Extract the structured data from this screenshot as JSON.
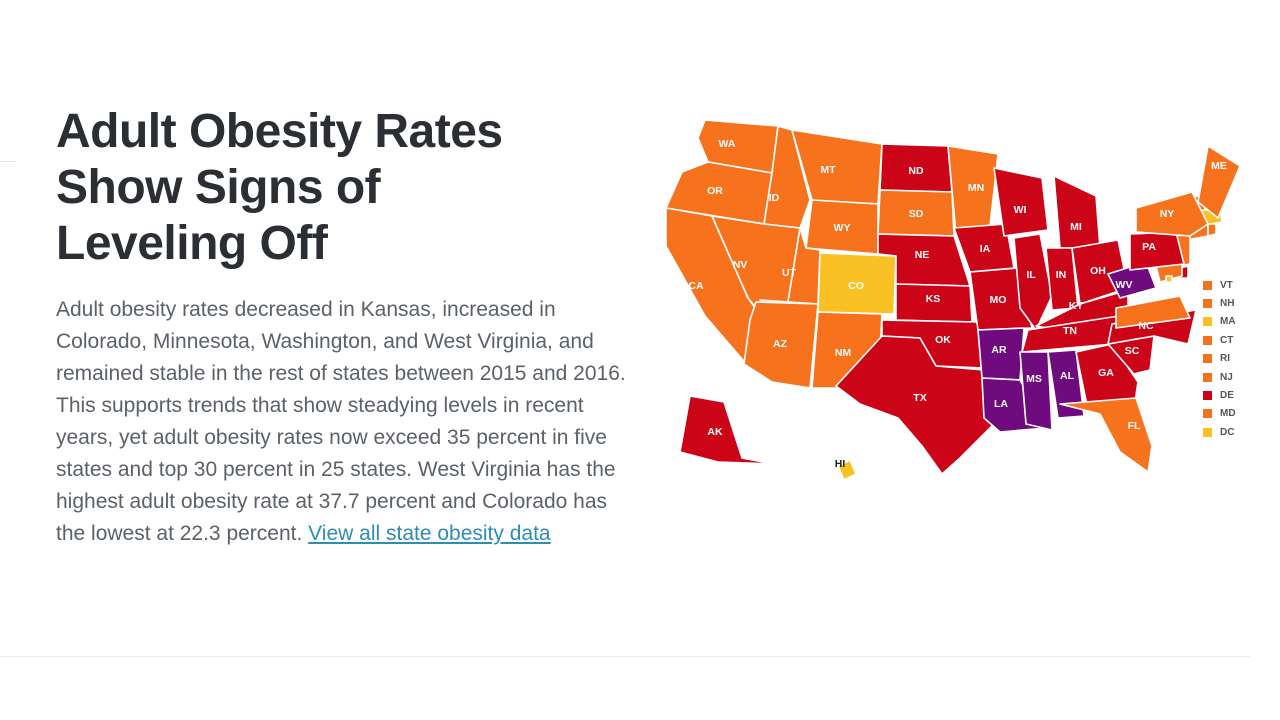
{
  "title_lines": [
    "Adult Obesity Rates",
    "Show Signs of",
    "Leveling Off"
  ],
  "body": {
    "text": "Adult obesity rates decreased in Kansas, increased in Colorado, Minnesota, Washington, and West Virginia, and remained stable in the rest of states between 2015 and 2016. This supports trends that show steadying levels in recent years, yet adult obesity rates now exceed 35 percent in five states and top 30 percent in 25 states. West Virginia has the highest adult obesity rate at 37.7 percent and Colorado has the lowest at 22.3 percent.",
    "link_text": "View all state obesity data"
  },
  "colors": {
    "yellow": "#f9c124",
    "orange": "#f7721d",
    "red": "#cc0418",
    "purple": "#6f0b7e"
  },
  "map_states": [
    {
      "abbr": "WA",
      "category": "orange"
    },
    {
      "abbr": "OR",
      "category": "orange"
    },
    {
      "abbr": "CA",
      "category": "orange"
    },
    {
      "abbr": "ID",
      "category": "orange"
    },
    {
      "abbr": "NV",
      "category": "orange"
    },
    {
      "abbr": "MT",
      "category": "orange"
    },
    {
      "abbr": "WY",
      "category": "orange"
    },
    {
      "abbr": "UT",
      "category": "orange"
    },
    {
      "abbr": "AZ",
      "category": "orange"
    },
    {
      "abbr": "CO",
      "category": "yellow"
    },
    {
      "abbr": "NM",
      "category": "orange"
    },
    {
      "abbr": "ND",
      "category": "red"
    },
    {
      "abbr": "SD",
      "category": "orange"
    },
    {
      "abbr": "NE",
      "category": "red"
    },
    {
      "abbr": "KS",
      "category": "red"
    },
    {
      "abbr": "OK",
      "category": "red"
    },
    {
      "abbr": "TX",
      "category": "red"
    },
    {
      "abbr": "MN",
      "category": "orange"
    },
    {
      "abbr": "IA",
      "category": "red"
    },
    {
      "abbr": "MO",
      "category": "red"
    },
    {
      "abbr": "AR",
      "category": "purple"
    },
    {
      "abbr": "LA",
      "category": "purple"
    },
    {
      "abbr": "WI",
      "category": "red"
    },
    {
      "abbr": "IL",
      "category": "red"
    },
    {
      "abbr": "MI",
      "category": "red"
    },
    {
      "abbr": "IN",
      "category": "red"
    },
    {
      "abbr": "OH",
      "category": "red"
    },
    {
      "abbr": "KY",
      "category": "red"
    },
    {
      "abbr": "TN",
      "category": "red"
    },
    {
      "abbr": "MS",
      "category": "purple"
    },
    {
      "abbr": "AL",
      "category": "purple"
    },
    {
      "abbr": "GA",
      "category": "red"
    },
    {
      "abbr": "FL",
      "category": "orange"
    },
    {
      "abbr": "SC",
      "category": "red"
    },
    {
      "abbr": "NC",
      "category": "red"
    },
    {
      "abbr": "VA",
      "category": "orange"
    },
    {
      "abbr": "WV",
      "category": "purple"
    },
    {
      "abbr": "PA",
      "category": "red"
    },
    {
      "abbr": "NY",
      "category": "orange"
    },
    {
      "abbr": "ME",
      "category": "orange"
    },
    {
      "abbr": "AK",
      "category": "red"
    },
    {
      "abbr": "HI",
      "category": "yellow"
    }
  ],
  "legend": [
    {
      "abbr": "VT",
      "category": "orange"
    },
    {
      "abbr": "NH",
      "category": "orange"
    },
    {
      "abbr": "MA",
      "category": "yellow"
    },
    {
      "abbr": "CT",
      "category": "orange"
    },
    {
      "abbr": "RI",
      "category": "orange"
    },
    {
      "abbr": "NJ",
      "category": "orange"
    },
    {
      "abbr": "DE",
      "category": "red"
    },
    {
      "abbr": "MD",
      "category": "orange"
    },
    {
      "abbr": "DC",
      "category": "yellow"
    }
  ]
}
